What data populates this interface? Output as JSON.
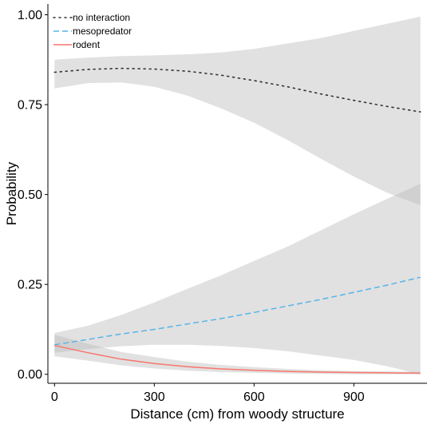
{
  "chart_data": {
    "type": "line",
    "xlabel": "Distance (cm) from woody structure",
    "ylabel": "Probability",
    "xlim": [
      -20,
      1120
    ],
    "ylim": [
      -0.025,
      1.03
    ],
    "x_ticks": [
      0,
      300,
      600,
      900
    ],
    "y_ticks": [
      0.0,
      0.25,
      0.5,
      0.75,
      1.0
    ],
    "x_tick_labels": [
      "0",
      "300",
      "600",
      "900"
    ],
    "y_tick_labels": [
      "0.00",
      "0.25",
      "0.50",
      "0.75",
      "1.00"
    ],
    "grid": false,
    "legend_position": "top-left",
    "series": [
      {
        "name": "no interaction",
        "style": "dotted",
        "color": "#333333",
        "x": [
          0,
          100,
          200,
          300,
          400,
          500,
          600,
          700,
          800,
          900,
          1000,
          1100
        ],
        "y": [
          0.84,
          0.848,
          0.851,
          0.849,
          0.843,
          0.832,
          0.817,
          0.8,
          0.78,
          0.762,
          0.745,
          0.73
        ],
        "ci_upper": [
          0.875,
          0.881,
          0.885,
          0.887,
          0.89,
          0.895,
          0.905,
          0.92,
          0.935,
          0.955,
          0.975,
          0.995
        ],
        "ci_lower": [
          0.795,
          0.81,
          0.812,
          0.8,
          0.775,
          0.74,
          0.7,
          0.652,
          0.6,
          0.55,
          0.505,
          0.47
        ]
      },
      {
        "name": "mesopredator",
        "style": "dashed",
        "color": "#56B4E9",
        "x": [
          0,
          100,
          200,
          300,
          400,
          500,
          600,
          700,
          800,
          900,
          1000,
          1100
        ],
        "y": [
          0.082,
          0.097,
          0.112,
          0.125,
          0.14,
          0.155,
          0.172,
          0.19,
          0.208,
          0.228,
          0.248,
          0.27
        ],
        "ci_upper": [
          0.115,
          0.135,
          0.165,
          0.2,
          0.238,
          0.275,
          0.315,
          0.355,
          0.4,
          0.445,
          0.488,
          0.53
        ],
        "ci_lower": [
          0.06,
          0.07,
          0.078,
          0.082,
          0.082,
          0.079,
          0.073,
          0.064,
          0.052,
          0.04,
          0.022,
          0.0
        ]
      },
      {
        "name": "rodent",
        "style": "solid",
        "color": "#F8766D",
        "x": [
          0,
          100,
          200,
          300,
          400,
          500,
          600,
          700,
          800,
          900,
          1000,
          1100
        ],
        "y": [
          0.08,
          0.06,
          0.042,
          0.03,
          0.021,
          0.015,
          0.011,
          0.008,
          0.006,
          0.005,
          0.004,
          0.003
        ],
        "ci_upper": [
          0.11,
          0.085,
          0.062,
          0.048,
          0.035,
          0.026,
          0.02,
          0.015,
          0.011,
          0.009,
          0.008,
          0.007
        ],
        "ci_lower": [
          0.05,
          0.038,
          0.025,
          0.016,
          0.01,
          0.006,
          0.004,
          0.002,
          0.001,
          0.0,
          0.0,
          0.0
        ]
      }
    ]
  }
}
